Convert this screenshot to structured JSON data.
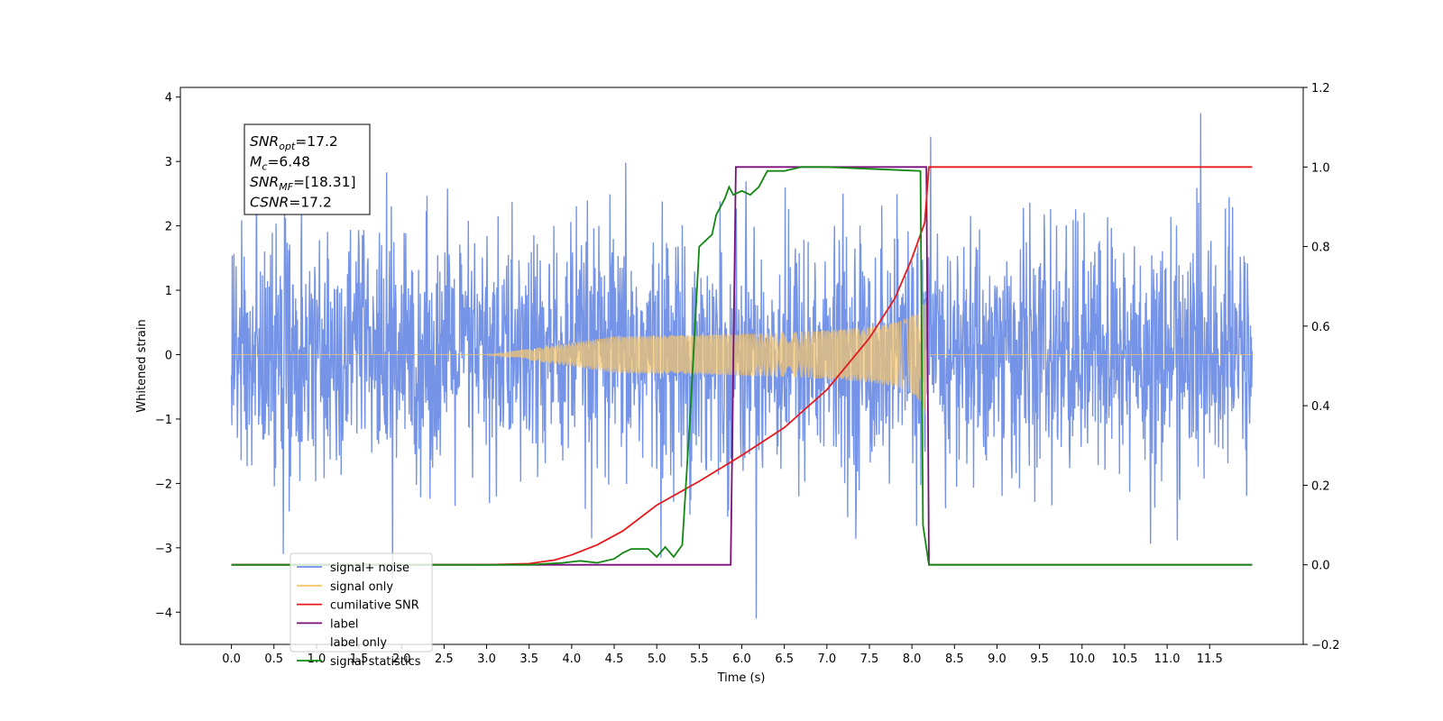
{
  "chart_data": {
    "type": "line",
    "xlabel": "Time (s)",
    "ylabel": "Whitened strain",
    "xlim": [
      -0.6,
      12.6
    ],
    "ylim": [
      -4.5,
      4.15
    ],
    "y2lim": [
      -0.2,
      1.2
    ],
    "grid": false,
    "legend_placement": "lower-left",
    "x_ticks": [
      "0.0",
      "0.5",
      "1.0",
      "1.5",
      "2.0",
      "2.5",
      "3.0",
      "3.5",
      "4.0",
      "4.5",
      "5.0",
      "5.5",
      "6.0",
      "6.5",
      "7.0",
      "7.5",
      "8.0",
      "8.5",
      "9.0",
      "9.5",
      "10.0",
      "10.5",
      "11.0",
      "11.5"
    ],
    "y_ticks": [
      "4",
      "3",
      "2",
      "1",
      "0",
      "−1",
      "−2",
      "−3",
      "−4"
    ],
    "y2_ticks": [
      "1.2",
      "1.0",
      "0.8",
      "0.6",
      "0.4",
      "0.2",
      "0.0",
      "−0.2"
    ],
    "annotation": {
      "lines": [
        {
          "base": "SNR",
          "sub": "opt",
          "rest": "=17.2"
        },
        {
          "base": "M",
          "sub": "c",
          "rest": "=6.48"
        },
        {
          "base": "SNR",
          "sub": "MF",
          "rest": "=[18.31]"
        },
        {
          "base": "CSNR",
          "sub": "",
          "rest": "=17.2"
        }
      ]
    },
    "series": [
      {
        "name": "signal+ noise",
        "axis": "left",
        "color": "#6f8ee6",
        "description_range": [
          0.0,
          12.0
        ],
        "noise_sigma": 0.95
      },
      {
        "name": "signal only",
        "axis": "left",
        "color": "#f5c66e",
        "chirp_start": 3.5,
        "chirp_end": 8.18,
        "peak_amplitude": 1.05
      },
      {
        "name": "cumilative SNR",
        "axis": "right",
        "color": "#e41a1c",
        "x": [
          0.0,
          3.0,
          3.5,
          3.8,
          4.0,
          4.3,
          4.6,
          5.0,
          5.5,
          6.0,
          6.5,
          7.0,
          7.5,
          7.8,
          8.0,
          8.15,
          8.2,
          12.0
        ],
        "y": [
          0.0,
          0.0,
          0.003,
          0.012,
          0.025,
          0.05,
          0.085,
          0.15,
          0.21,
          0.275,
          0.345,
          0.44,
          0.57,
          0.67,
          0.77,
          0.86,
          1.0,
          1.0
        ]
      },
      {
        "name": "label",
        "axis": "right",
        "color": "#7b0f7b",
        "x": [
          0.0,
          5.87,
          5.93,
          8.17,
          8.2,
          12.0
        ],
        "y": [
          0.0,
          0.0,
          1.0,
          1.0,
          0.0,
          0.0
        ]
      },
      {
        "name": "label only",
        "axis": "right",
        "color": "#cfcfcf",
        "hidden": true
      },
      {
        "name": "signal statistics",
        "axis": "right",
        "color": "#118811",
        "x": [
          0.0,
          3.5,
          3.9,
          4.1,
          4.3,
          4.5,
          4.6,
          4.7,
          4.9,
          5.0,
          5.1,
          5.2,
          5.3,
          5.4,
          5.45,
          5.5,
          5.6,
          5.65,
          5.7,
          5.8,
          5.85,
          5.9,
          6.0,
          6.1,
          6.2,
          6.3,
          6.4,
          6.5,
          6.7,
          6.85,
          7.0,
          8.1,
          8.13,
          8.2,
          12.0
        ],
        "y": [
          0.0,
          0.0,
          0.005,
          0.01,
          0.005,
          0.015,
          0.03,
          0.04,
          0.04,
          0.02,
          0.045,
          0.02,
          0.05,
          0.4,
          0.6,
          0.8,
          0.82,
          0.83,
          0.88,
          0.92,
          0.95,
          0.93,
          0.94,
          0.93,
          0.95,
          0.99,
          0.99,
          0.99,
          1.0,
          1.0,
          1.0,
          0.99,
          0.1,
          0.0,
          0.0
        ]
      }
    ]
  }
}
